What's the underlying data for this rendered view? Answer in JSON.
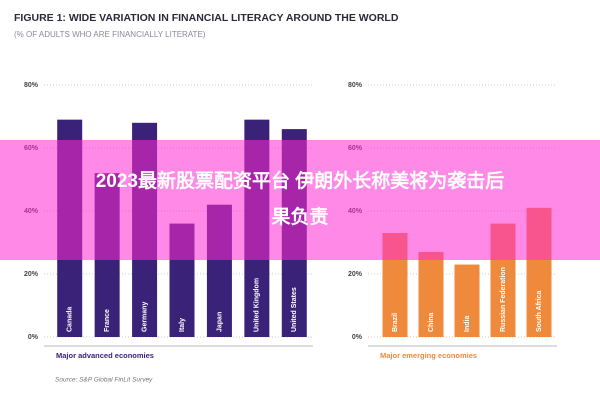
{
  "title": "FIGURE 1: WIDE VARIATION IN FINANCIAL LITERACY AROUND THE WORLD",
  "subtitle": "(% OF ADULTS WHO ARE FINANCIALLY LITERATE)",
  "source": "Source: S&P Global FinLit Survey",
  "banner": {
    "lines": [
      "2023最新股票配资平台 伊朗外长称美将为袭击后",
      "果负责"
    ]
  },
  "chart_data": [
    {
      "type": "bar",
      "xlabel": "Major advanced economies",
      "categories": [
        "Canada",
        "France",
        "Germany",
        "Italy",
        "Japan",
        "United Kingdom",
        "United States"
      ],
      "values": [
        69,
        52,
        68,
        36,
        42,
        69,
        66
      ],
      "color": "#3b2279",
      "ylim": [
        0,
        80
      ],
      "yticks": [
        {
          "value": 0,
          "label": "0%"
        },
        {
          "value": 20,
          "label": "20%"
        },
        {
          "value": 40,
          "label": "40%"
        },
        {
          "value": 60,
          "label": "60%"
        },
        {
          "value": 80,
          "label": "80%"
        }
      ],
      "grid": true
    },
    {
      "type": "bar",
      "xlabel": "Major emerging economies",
      "categories": [
        "Brazil",
        "China",
        "India",
        "Russian Federation",
        "South Africa"
      ],
      "values": [
        33,
        27,
        23,
        36,
        41
      ],
      "color": "#ef8a3c",
      "ylim": [
        0,
        80
      ],
      "yticks": [
        {
          "value": 0,
          "label": "0%"
        },
        {
          "value": 20,
          "label": "20%"
        },
        {
          "value": 40,
          "label": "40%"
        },
        {
          "value": 60,
          "label": "60%"
        },
        {
          "value": 80,
          "label": "80%"
        }
      ],
      "grid": true
    }
  ]
}
